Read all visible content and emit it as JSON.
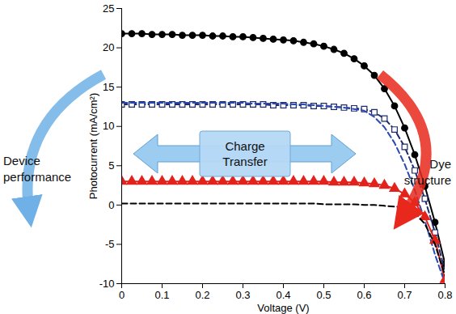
{
  "chart_data": {
    "type": "line",
    "x_label": "Voltage (V)",
    "y_label": "Photocurrent (mA/cm²)",
    "annotations": [
      "Device performance",
      "Charge Transfer",
      "Dye structure"
    ],
    "xlim": [
      0,
      0.8
    ],
    "ylim": [
      -10,
      25
    ],
    "xticks": [
      0,
      0.1,
      0.2,
      0.3,
      0.4,
      0.5,
      0.6,
      0.7,
      0.8
    ],
    "yticks": [
      -10,
      -5,
      0,
      5,
      10,
      15,
      20,
      25
    ],
    "x": [
      0,
      0.025,
      0.05,
      0.075,
      0.1,
      0.125,
      0.15,
      0.175,
      0.2,
      0.225,
      0.25,
      0.275,
      0.3,
      0.325,
      0.35,
      0.375,
      0.4,
      0.425,
      0.45,
      0.475,
      0.5,
      0.525,
      0.55,
      0.575,
      0.6,
      0.625,
      0.65,
      0.675,
      0.7,
      0.725,
      0.75,
      0.775,
      0.8
    ],
    "series": [
      {
        "color": "#000000",
        "marker": "circle",
        "line_style": "solid",
        "values": [
          21.8,
          21.8,
          21.8,
          21.7,
          21.7,
          21.7,
          21.6,
          21.6,
          21.6,
          21.5,
          21.5,
          21.4,
          21.4,
          21.3,
          21.2,
          21.1,
          21.0,
          20.9,
          20.7,
          20.5,
          20.2,
          19.8,
          19.3,
          18.6,
          17.7,
          16.5,
          14.8,
          12.6,
          9.8,
          6.4,
          2.4,
          -2.2,
          -7.5
        ]
      },
      {
        "color": "#1c2a6b",
        "marker": "square",
        "line_style": "dashed",
        "values": [
          12.8,
          12.8,
          12.8,
          12.8,
          12.8,
          12.8,
          12.8,
          12.8,
          12.8,
          12.8,
          12.8,
          12.8,
          12.8,
          12.8,
          12.8,
          12.7,
          12.7,
          12.7,
          12.7,
          12.6,
          12.6,
          12.5,
          12.4,
          12.3,
          12.2,
          11.8,
          11.0,
          9.6,
          7.4,
          4.4,
          0.8,
          -3.5,
          -8.5
        ]
      },
      {
        "color": "#2b4ab0",
        "marker": "none",
        "line_style": "dashed",
        "values": [
          13.0,
          13.0,
          13.0,
          13.0,
          13.0,
          13.0,
          13.0,
          13.0,
          13.0,
          13.0,
          13.0,
          13.0,
          13.0,
          12.9,
          12.9,
          12.9,
          12.9,
          12.8,
          12.8,
          12.7,
          12.6,
          12.5,
          12.4,
          12.2,
          12.0,
          11.2,
          9.9,
          7.9,
          5.2,
          1.9,
          -2.0,
          -6.3,
          -10.0
        ]
      },
      {
        "color": "#e3221c",
        "marker": "triangle",
        "line_style": "solid",
        "values": [
          3.0,
          3.0,
          3.0,
          3.0,
          3.0,
          3.0,
          3.0,
          3.0,
          3.0,
          3.0,
          3.0,
          3.0,
          3.0,
          3.0,
          3.0,
          3.0,
          3.0,
          3.0,
          3.0,
          3.0,
          3.0,
          2.9,
          2.9,
          2.9,
          2.8,
          2.7,
          2.5,
          2.1,
          1.4,
          0.3,
          -1.5,
          -4.5,
          -9.5
        ]
      },
      {
        "color": "#000000",
        "marker": "none",
        "line_style": "dashed",
        "values": [
          0.2,
          0.2,
          0.2,
          0.2,
          0.2,
          0.2,
          0.2,
          0.2,
          0.2,
          0.2,
          0.2,
          0.2,
          0.2,
          0.2,
          0.2,
          0.2,
          0.2,
          0.2,
          0.2,
          0.2,
          0.1,
          0.1,
          0.1,
          0.1,
          0.0,
          0.0,
          -0.1,
          -0.2,
          -0.3,
          -1.0,
          -2.4,
          -5.0,
          -9.0
        ]
      }
    ]
  }
}
